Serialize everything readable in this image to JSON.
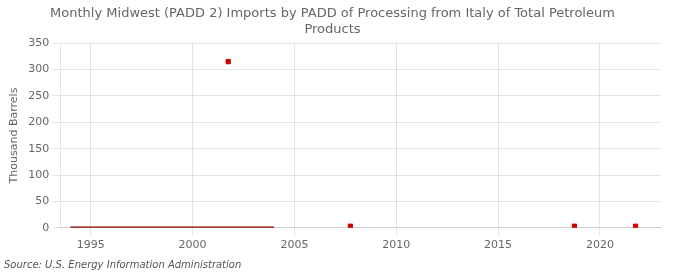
{
  "chart_data": {
    "type": "line",
    "title": "Monthly Midwest (PADD 2) Imports by PADD of Processing from Italy of Total Petroleum\nProducts",
    "ylabel": "Thousand Barrels",
    "source": "Source: U.S. Energy Information Administration",
    "xlim": [
      1993.5,
      2023
    ],
    "xticks": [
      1995,
      2000,
      2005,
      2010,
      2015,
      2020
    ],
    "ylim": [
      0,
      350
    ],
    "yticks": [
      0,
      50,
      100,
      150,
      200,
      250,
      300,
      350
    ],
    "grid": true,
    "series": [
      {
        "type": "line",
        "color": "#8b0000",
        "x": [
          1994.0,
          2004.0
        ],
        "values": [
          0,
          0
        ]
      },
      {
        "type": "scatter",
        "color": "#cc0000",
        "marker": "square",
        "x": [
          2001.75,
          2007.75,
          2018.75,
          2021.75
        ],
        "values": [
          315,
          3,
          3,
          3
        ]
      }
    ]
  }
}
